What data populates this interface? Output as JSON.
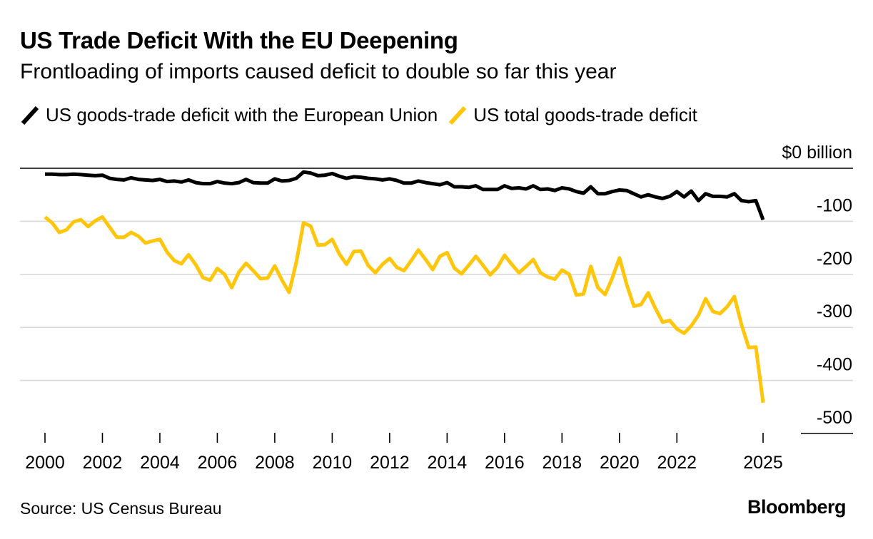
{
  "title": "US Trade Deficit With the EU Deepening",
  "subtitle": "Frontloading of imports caused deficit to double so far this year",
  "source": "Source: US Census Bureau",
  "brand": "Bloomberg",
  "chart_data": {
    "type": "line",
    "y_unit_label": "$0 billion",
    "ylim": [
      -500,
      0
    ],
    "y_ticks": [
      0,
      -100,
      -200,
      -300,
      -400,
      -500
    ],
    "y_tick_labels": [
      "$0 billion",
      "-100",
      "-200",
      "-300",
      "-400",
      "-500"
    ],
    "xlim": [
      2000,
      2025
    ],
    "x_ticks": [
      2000,
      2002,
      2004,
      2006,
      2008,
      2010,
      2012,
      2014,
      2016,
      2018,
      2020,
      2022,
      2025
    ],
    "x_tick_labels": [
      "2000",
      "2002",
      "2004",
      "2006",
      "2008",
      "2010",
      "2012",
      "2014",
      "2016",
      "2018",
      "2020",
      "2022",
      "2025"
    ],
    "legend_position": "top-left",
    "grid": true,
    "series": [
      {
        "name": "US goods-trade deficit with the European Union",
        "color": "#000000",
        "x": [
          2000.0,
          2000.25,
          2000.5,
          2000.75,
          2001.0,
          2001.25,
          2001.5,
          2001.75,
          2002.0,
          2002.25,
          2002.5,
          2002.75,
          2003.0,
          2003.25,
          2003.5,
          2003.75,
          2004.0,
          2004.25,
          2004.5,
          2004.75,
          2005.0,
          2005.25,
          2005.5,
          2005.75,
          2006.0,
          2006.25,
          2006.5,
          2006.75,
          2007.0,
          2007.25,
          2007.5,
          2007.75,
          2008.0,
          2008.25,
          2008.5,
          2008.75,
          2009.0,
          2009.25,
          2009.5,
          2009.75,
          2010.0,
          2010.25,
          2010.5,
          2010.75,
          2011.0,
          2011.25,
          2011.5,
          2011.75,
          2012.0,
          2012.25,
          2012.5,
          2012.75,
          2013.0,
          2013.25,
          2013.5,
          2013.75,
          2014.0,
          2014.25,
          2014.5,
          2014.75,
          2015.0,
          2015.25,
          2015.5,
          2015.75,
          2016.0,
          2016.25,
          2016.5,
          2016.75,
          2017.0,
          2017.25,
          2017.5,
          2017.75,
          2018.0,
          2018.25,
          2018.5,
          2018.75,
          2019.0,
          2019.25,
          2019.5,
          2019.75,
          2020.0,
          2020.25,
          2020.5,
          2020.75,
          2021.0,
          2021.25,
          2021.5,
          2021.75,
          2022.0,
          2022.25,
          2022.5,
          2022.75,
          2023.0,
          2023.25,
          2023.5,
          2023.75,
          2024.0,
          2024.25,
          2024.5,
          2024.75,
          2025.0
        ],
        "y": [
          -11,
          -11,
          -12,
          -12,
          -11,
          -12,
          -13,
          -14,
          -13,
          -19,
          -21,
          -22,
          -18,
          -21,
          -22,
          -23,
          -21,
          -25,
          -24,
          -26,
          -22,
          -27,
          -29,
          -29,
          -25,
          -28,
          -29,
          -27,
          -21,
          -27,
          -28,
          -28,
          -20,
          -24,
          -23,
          -19,
          -7,
          -9,
          -14,
          -13,
          -10,
          -15,
          -19,
          -16,
          -17,
          -19,
          -20,
          -22,
          -20,
          -23,
          -28,
          -28,
          -24,
          -27,
          -29,
          -31,
          -27,
          -35,
          -35,
          -36,
          -33,
          -40,
          -40,
          -40,
          -33,
          -38,
          -37,
          -39,
          -33,
          -40,
          -39,
          -42,
          -37,
          -39,
          -44,
          -47,
          -35,
          -48,
          -48,
          -44,
          -41,
          -42,
          -48,
          -54,
          -50,
          -54,
          -57,
          -53,
          -44,
          -54,
          -43,
          -61,
          -48,
          -53,
          -53,
          -54,
          -48,
          -61,
          -63,
          -61,
          -97
        ]
      },
      {
        "name": "US total goods-trade deficit",
        "color": "#ffc60b",
        "x": [
          2000.0,
          2000.25,
          2000.5,
          2000.75,
          2001.0,
          2001.25,
          2001.5,
          2001.75,
          2002.0,
          2002.25,
          2002.5,
          2002.75,
          2003.0,
          2003.25,
          2003.5,
          2003.75,
          2004.0,
          2004.25,
          2004.5,
          2004.75,
          2005.0,
          2005.25,
          2005.5,
          2005.75,
          2006.0,
          2006.25,
          2006.5,
          2006.75,
          2007.0,
          2007.25,
          2007.5,
          2007.75,
          2008.0,
          2008.25,
          2008.5,
          2008.75,
          2009.0,
          2009.25,
          2009.5,
          2009.75,
          2010.0,
          2010.25,
          2010.5,
          2010.75,
          2011.0,
          2011.25,
          2011.5,
          2011.75,
          2012.0,
          2012.25,
          2012.5,
          2012.75,
          2013.0,
          2013.25,
          2013.5,
          2013.75,
          2014.0,
          2014.25,
          2014.5,
          2014.75,
          2015.0,
          2015.25,
          2015.5,
          2015.75,
          2016.0,
          2016.25,
          2016.5,
          2016.75,
          2017.0,
          2017.25,
          2017.5,
          2017.75,
          2018.0,
          2018.25,
          2018.5,
          2018.75,
          2019.0,
          2019.25,
          2019.5,
          2019.75,
          2020.0,
          2020.25,
          2020.5,
          2020.75,
          2021.0,
          2021.25,
          2021.5,
          2021.75,
          2022.0,
          2022.25,
          2022.5,
          2022.75,
          2023.0,
          2023.25,
          2023.5,
          2023.75,
          2024.0,
          2024.25,
          2024.5,
          2024.75,
          2025.0
        ],
        "y": [
          -92,
          -103,
          -121,
          -116,
          -101,
          -97,
          -110,
          -99,
          -92,
          -111,
          -130,
          -130,
          -121,
          -128,
          -141,
          -137,
          -134,
          -158,
          -174,
          -180,
          -163,
          -182,
          -206,
          -211,
          -189,
          -200,
          -225,
          -196,
          -179,
          -193,
          -208,
          -207,
          -184,
          -211,
          -234,
          -177,
          -103,
          -109,
          -145,
          -144,
          -134,
          -162,
          -181,
          -157,
          -156,
          -183,
          -197,
          -181,
          -170,
          -187,
          -193,
          -174,
          -154,
          -172,
          -191,
          -166,
          -159,
          -188,
          -199,
          -183,
          -166,
          -183,
          -201,
          -187,
          -164,
          -181,
          -197,
          -185,
          -172,
          -197,
          -205,
          -209,
          -192,
          -200,
          -239,
          -237,
          -185,
          -225,
          -238,
          -207,
          -169,
          -219,
          -260,
          -257,
          -235,
          -264,
          -290,
          -287,
          -303,
          -311,
          -297,
          -277,
          -246,
          -270,
          -274,
          -261,
          -242,
          -295,
          -338,
          -337,
          -442
        ]
      }
    ]
  }
}
